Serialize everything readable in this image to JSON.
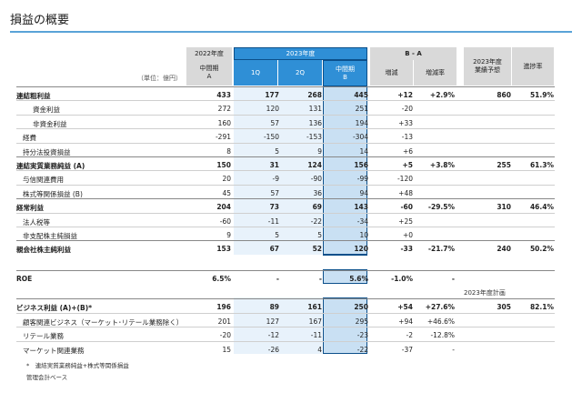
{
  "title": "損益の概要",
  "unit_label": "（単位：億円）",
  "headers": {
    "fy2022": "2022年度",
    "fy2022_sub": "中間期\nA",
    "fy2023": "2023年度",
    "q1": "1Q",
    "q2": "2Q",
    "interim_b": "中間期\nB",
    "diff": "B - A",
    "increase": "増減",
    "increase_rate": "増減率",
    "forecast": "2023年度\n業績予想",
    "progress": "進捗率"
  },
  "rows": [
    {
      "label": "連結粗利益",
      "indent": 0,
      "bold": true,
      "a": "433",
      "q1": "177",
      "q2": "268",
      "b": "445",
      "inc": "+12",
      "pct": "+2.9%",
      "fc": "860",
      "pr": "51.9%"
    },
    {
      "label": "資金利益",
      "indent": 2,
      "bold": false,
      "a": "272",
      "q1": "120",
      "q2": "131",
      "b": "251",
      "inc": "-20",
      "pct": "",
      "fc": "",
      "pr": ""
    },
    {
      "label": "非資金利益",
      "indent": 2,
      "bold": false,
      "a": "160",
      "q1": "57",
      "q2": "136",
      "b": "194",
      "inc": "+33",
      "pct": "",
      "fc": "",
      "pr": ""
    },
    {
      "label": "経費",
      "indent": 1,
      "bold": false,
      "a": "-291",
      "q1": "-150",
      "q2": "-153",
      "b": "-304",
      "inc": "-13",
      "pct": "",
      "fc": "",
      "pr": ""
    },
    {
      "label": "持分法投資損益",
      "indent": 1,
      "bold": false,
      "a": "8",
      "q1": "5",
      "q2": "9",
      "b": "14",
      "inc": "+6",
      "pct": "",
      "fc": "",
      "pr": ""
    },
    {
      "label": "連結実質業務純益 (A)",
      "indent": 0,
      "bold": true,
      "a": "150",
      "q1": "31",
      "q2": "124",
      "b": "156",
      "inc": "+5",
      "pct": "+3.8%",
      "fc": "255",
      "pr": "61.3%"
    },
    {
      "label": "与信関連費用",
      "indent": 1,
      "bold": false,
      "a": "20",
      "q1": "-9",
      "q2": "-90",
      "b": "-99",
      "inc": "-120",
      "pct": "",
      "fc": "",
      "pr": ""
    },
    {
      "label": "株式等関係損益 (B)",
      "indent": 1,
      "bold": false,
      "a": "45",
      "q1": "57",
      "q2": "36",
      "b": "94",
      "inc": "+48",
      "pct": "",
      "fc": "",
      "pr": ""
    },
    {
      "label": "経常利益",
      "indent": 0,
      "bold": true,
      "a": "204",
      "q1": "73",
      "q2": "69",
      "b": "143",
      "inc": "-60",
      "pct": "-29.5%",
      "fc": "310",
      "pr": "46.4%"
    },
    {
      "label": "法人税等",
      "indent": 1,
      "bold": false,
      "a": "-60",
      "q1": "-11",
      "q2": "-22",
      "b": "-34",
      "inc": "+25",
      "pct": "",
      "fc": "",
      "pr": ""
    },
    {
      "label": "非支配株主純損益",
      "indent": 1,
      "bold": false,
      "a": "9",
      "q1": "5",
      "q2": "5",
      "b": "10",
      "inc": "+0",
      "pct": "",
      "fc": "",
      "pr": ""
    },
    {
      "label": "親会社株主純利益",
      "indent": 0,
      "bold": true,
      "a": "153",
      "q1": "67",
      "q2": "52",
      "b": "120",
      "inc": "-33",
      "pct": "-21.7%",
      "fc": "240",
      "pr": "50.2%"
    }
  ],
  "roe": {
    "label": "ROE",
    "a": "6.5%",
    "q1": "-",
    "q2": "-",
    "b": "5.6%",
    "inc": "-1.0%",
    "pct": "-"
  },
  "plan_note": "2023年度計画",
  "biz_rows": [
    {
      "label": "ビジネス利益 (A)+(B)*",
      "indent": 0,
      "bold": true,
      "a": "196",
      "q1": "89",
      "q2": "161",
      "b": "250",
      "inc": "+54",
      "pct": "+27.6%",
      "fc": "305",
      "pr": "82.1%"
    },
    {
      "label": "顧客関連ビジネス（マーケット･リテール業務除く）",
      "indent": 1,
      "bold": false,
      "a": "201",
      "q1": "127",
      "q2": "167",
      "b": "295",
      "inc": "+94",
      "pct": "+46.6%",
      "fc": "",
      "pr": ""
    },
    {
      "label": "リテール業務",
      "indent": 1,
      "bold": false,
      "a": "-20",
      "q1": "-12",
      "q2": "-11",
      "b": "-23",
      "inc": "-2",
      "pct": "-12.8%",
      "fc": "",
      "pr": ""
    },
    {
      "label": "マーケット関連業務",
      "indent": 1,
      "bold": false,
      "a": "15",
      "q1": "-26",
      "q2": "4",
      "b": "-22",
      "inc": "-37",
      "pct": "-",
      "fc": "",
      "pr": ""
    }
  ],
  "footnotes": [
    "*　連結実質業務純益+株式等関係損益",
    "管理会計ベース"
  ]
}
